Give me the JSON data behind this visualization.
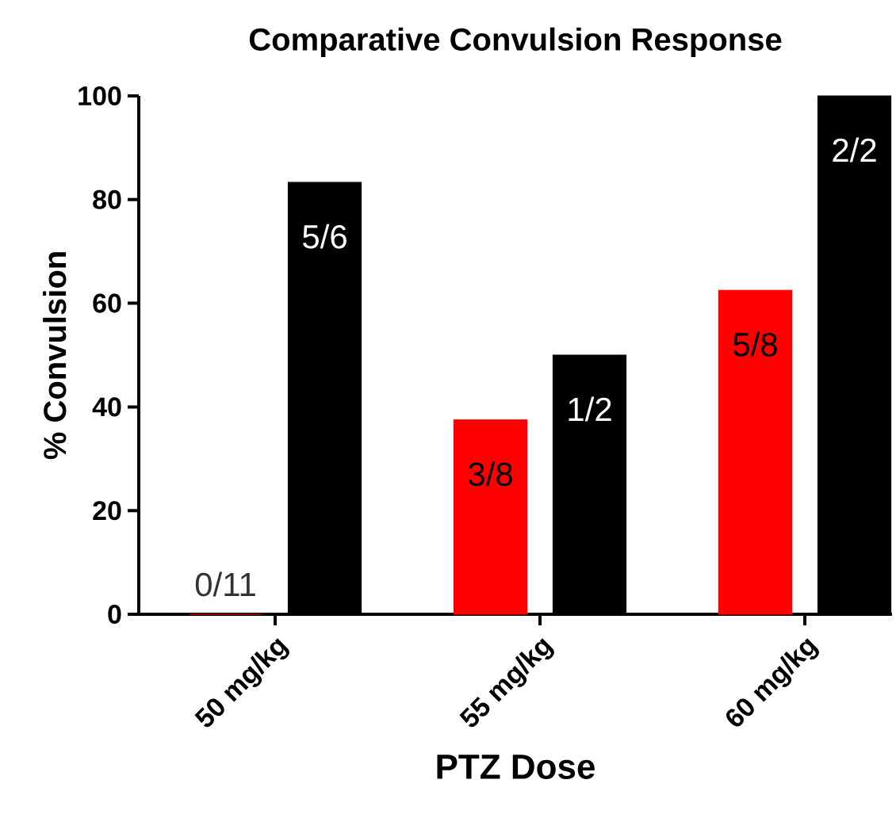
{
  "chart_data": {
    "type": "bar",
    "title": "Comparative Convulsion Response",
    "xlabel": "PTZ Dose",
    "ylabel": "% Convulsion",
    "categories": [
      "50 mg/kg",
      "55 mg/kg",
      "60 mg/kg"
    ],
    "series": [
      {
        "color": "#ff0000",
        "values": [
          0,
          37.5,
          62.5
        ]
      },
      {
        "color": "#000000",
        "values": [
          83.3,
          50,
          100
        ]
      }
    ],
    "annotations": [
      "0/11",
      "5/6",
      "3/8",
      "1/2",
      "5/8",
      "2/2"
    ],
    "ylim": [
      0,
      100
    ],
    "yticks": [
      0,
      20,
      40,
      60,
      80,
      100
    ]
  }
}
